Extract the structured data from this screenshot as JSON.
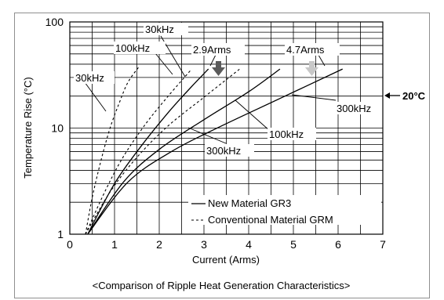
{
  "chart_data": {
    "type": "line",
    "xlabel": "Current (Arms)",
    "ylabel": "Temperature Rise (°C)",
    "xlim": [
      0,
      7
    ],
    "ylim": [
      1,
      100
    ],
    "yscale": "log",
    "x_ticks": [
      "0",
      "1",
      "2",
      "3",
      "4",
      "5",
      "6",
      "7"
    ],
    "y_ticks": [
      "1",
      "10",
      "100"
    ],
    "grid": true,
    "caption": "<Comparison of Ripple Heat Generation Characteristics>",
    "legend": {
      "placement": "bottom-right",
      "entries": [
        {
          "label": "New Material GR3",
          "style": "solid"
        },
        {
          "label": "Conventional Material GRM",
          "style": "dashed"
        }
      ]
    },
    "series": [
      {
        "label": "30kHz",
        "style": "dashed",
        "x": [
          0.35,
          0.5,
          0.7,
          0.9,
          1.1,
          1.3,
          1.55
        ],
        "y": [
          1,
          2.2,
          5,
          10,
          17,
          27,
          38
        ]
      },
      {
        "label": "100kHz",
        "style": "dashed",
        "x": [
          0.35,
          0.8,
          1.2,
          1.7,
          2.2,
          2.7
        ],
        "y": [
          1,
          2.6,
          5.4,
          11,
          20,
          35
        ]
      },
      {
        "label": "300kHz",
        "style": "dashed",
        "x": [
          0.35,
          0.9,
          1.5,
          2.2,
          3.0,
          3.8
        ],
        "y": [
          1,
          2.5,
          5.3,
          10.5,
          19.5,
          36
        ]
      },
      {
        "label": "30kHz",
        "style": "solid",
        "x": [
          0.4,
          1.0,
          1.6,
          2.2,
          2.7,
          3.1
        ],
        "y": [
          1,
          3.0,
          6.8,
          14,
          24,
          36
        ]
      },
      {
        "label": "100kHz",
        "style": "solid",
        "x": [
          0.4,
          1.2,
          2.0,
          3.0,
          4.0,
          4.7
        ],
        "y": [
          1,
          3.1,
          6.3,
          12,
          22,
          36
        ]
      },
      {
        "label": "300kHz",
        "style": "solid",
        "x": [
          0.4,
          1.3,
          2.3,
          3.4,
          4.7,
          6.1
        ],
        "y": [
          1,
          3.1,
          6.1,
          10.5,
          19,
          36
        ]
      }
    ],
    "annotations": [
      {
        "text": "30kHz"
      },
      {
        "text": "100kHz"
      },
      {
        "text": "2.9Arms"
      },
      {
        "text": "4.7Arms"
      },
      {
        "text": "30kHz"
      },
      {
        "text": "300kHz"
      },
      {
        "text": "100kHz"
      },
      {
        "text": "300kHz"
      },
      {
        "text": "20°C"
      }
    ],
    "arrow_markers": [
      {
        "x": 3.3,
        "color": "#5a5a5a"
      },
      {
        "x": 5.4,
        "color": "#c8c8c8"
      }
    ]
  }
}
